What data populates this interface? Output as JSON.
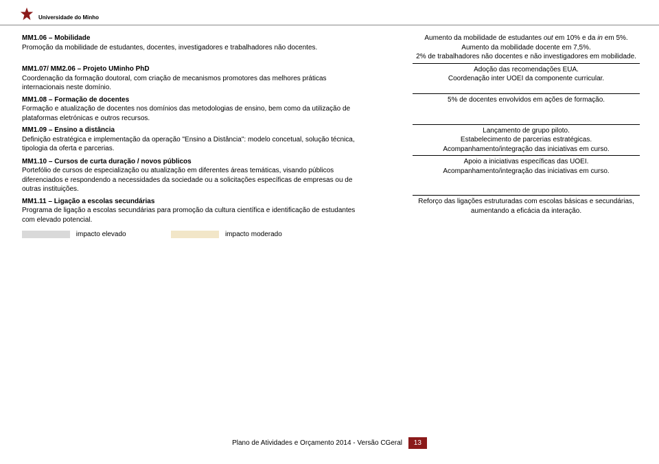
{
  "header": {
    "uni_name": "Universidade do Minho"
  },
  "rows": [
    {
      "left_title": "MM1.06 – Mobilidade",
      "left_body": "Promoção da mobilidade de estudantes, docentes, investigadores e trabalhadores não docentes.",
      "right_lines": [
        "Aumento da mobilidade de estudantes out em 10% e da in em 5%.",
        "Aumento da mobilidade docente em 7,5%.",
        "2% de trabalhadores não docentes e não investigadores em mobilidade."
      ],
      "right_has_italic_outin": true,
      "right_sep": true
    },
    {
      "left_title": "MM1.07/ MM2.06 – Projeto UMinho PhD",
      "left_body": "Coordenação da formação doutoral, com criação de mecanismos promotores das melhores práticas internacionais neste domínio.",
      "right_lines": [
        "Adoção das recomendações EUA.",
        "Coordenação inter UOEI da componente curricular."
      ],
      "right_sep": true
    },
    {
      "left_title": "MM1.08 – Formação de docentes",
      "left_body": "Formação e atualização de docentes nos domínios das metodologias de ensino, bem como da utilização de plataformas eletrónicas e outros recursos.",
      "right_lines": [
        "5% de docentes envolvidos em ações de formação."
      ],
      "right_sep": true
    },
    {
      "left_title": "MM1.09 – Ensino a distância",
      "left_body": "Definição estratégica e implementação da operação \"Ensino a Distância\": modelo concetual, solução técnica, tipologia da oferta e parcerias.",
      "right_lines": [
        "Lançamento de grupo piloto.",
        "Estabelecimento de parcerias estratégicas.",
        "Acompanhamento/integração das iniciativas em curso."
      ],
      "right_sep": true
    },
    {
      "left_title": "MM1.10 – Cursos de curta duração / novos públicos",
      "left_body": "Portefólio de cursos de especialização ou atualização em diferentes áreas temáticas, visando públicos diferenciados e respondendo a necessidades da sociedade ou a solicitações específicas de empresas ou de outras instituições.",
      "right_lines": [
        "Apoio a iniciativas específicas das UOEI.",
        "Acompanhamento/integração das iniciativas em curso."
      ],
      "right_sep": true
    },
    {
      "left_title": "MM1.11 – Ligação a escolas secundárias",
      "left_body": "Programa de ligação a escolas secundárias para promoção da cultura científica e identificação de estudantes com elevado potencial.",
      "right_lines": [
        "Reforço das ligações estruturadas com escolas básicas e secundárias, aumentando a eficácia da interação."
      ],
      "right_sep": false
    }
  ],
  "legend": {
    "high_label": "impacto elevado",
    "mod_label": "impacto moderado",
    "high_color": "#d9d9d9",
    "mod_color": "#f2e6c8"
  },
  "footer": {
    "text": "Plano de Atividades e Orçamento 2014 - Versão CGeral",
    "page": "13"
  },
  "colors": {
    "brand": "#8b1a1a",
    "rule": "#000000"
  }
}
